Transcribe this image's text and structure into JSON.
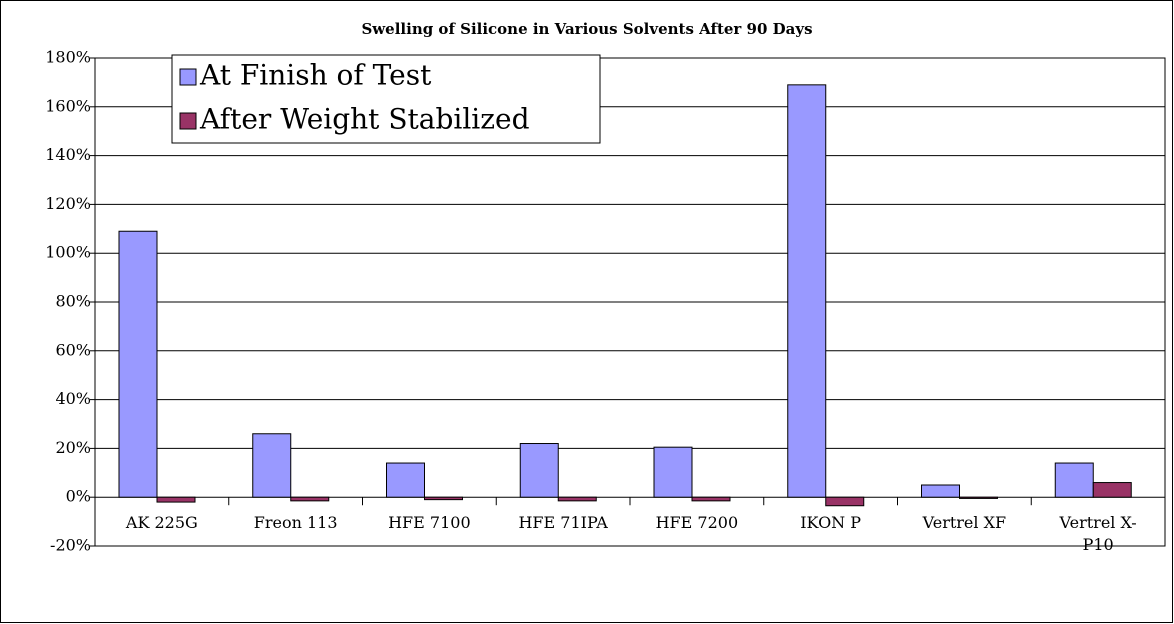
{
  "chart_data": {
    "type": "bar",
    "title": "Swelling of Silicone in Various Solvents After 90 Days",
    "categories": [
      "AK 225G",
      "Freon 113",
      "HFE 7100",
      "HFE 71IPA",
      "HFE 7200",
      "IKON P",
      "Vertrel XF",
      "Vertrel X-P10"
    ],
    "series": [
      {
        "name": "At Finish of Test",
        "color": "#9999ff",
        "values": [
          109,
          26,
          14,
          22,
          20.5,
          169,
          5,
          14
        ]
      },
      {
        "name": "After Weight Stabilized",
        "color": "#993366",
        "values": [
          -2,
          -1.5,
          -1,
          -1.5,
          -1.5,
          -3.5,
          -0.5,
          6
        ]
      }
    ],
    "ylim": [
      -20,
      180
    ],
    "yticks": [
      {
        "value": -20,
        "label": "-20%"
      },
      {
        "value": 0,
        "label": "0%"
      },
      {
        "value": 20,
        "label": "20%"
      },
      {
        "value": 40,
        "label": "40%"
      },
      {
        "value": 60,
        "label": "60%"
      },
      {
        "value": 80,
        "label": "80%"
      },
      {
        "value": 100,
        "label": "100%"
      },
      {
        "value": 120,
        "label": "120%"
      },
      {
        "value": 140,
        "label": "140%"
      },
      {
        "value": 160,
        "label": "160%"
      },
      {
        "value": 180,
        "label": "180%"
      }
    ],
    "grid": true,
    "legend": "upper left"
  }
}
